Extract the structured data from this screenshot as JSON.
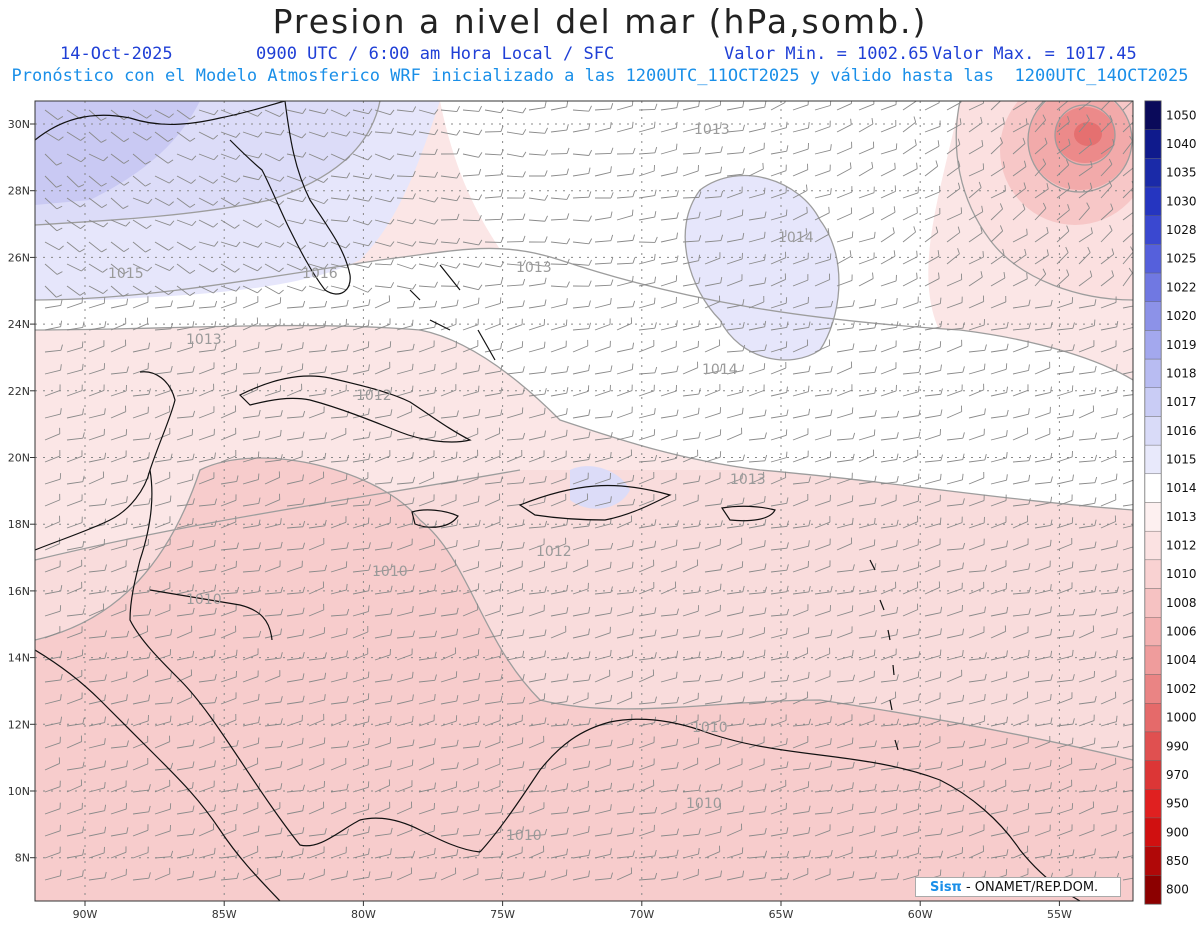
{
  "header": {
    "title": "Presion a nivel del mar (hPa,somb.)",
    "date": "14-Oct-2025",
    "time": "0900 UTC / 6:00 am Hora Local / SFC",
    "min_label": "Valor Min. = 1002.65",
    "max_label": "Valor Max. = 1017.45",
    "subtitle": "Pronóstico con el Modelo Atmosferico WRF inicializado a las 1200UTC_11OCT2025 y válido hasta las  1200UTC_14OCT2025"
  },
  "map": {
    "lat_ticks": [
      "30N",
      "28N",
      "26N",
      "24N",
      "22N",
      "20N",
      "18N",
      "16N",
      "14N",
      "12N",
      "10N",
      "8N"
    ],
    "lon_ticks": [
      "90W",
      "85W",
      "80W",
      "75W",
      "70W",
      "65W",
      "60W",
      "55W"
    ],
    "isobar_labels": [
      "1013",
      "1014",
      "1015",
      "1016",
      "1013",
      "1013",
      "1014",
      "1012",
      "1013",
      "1012",
      "1010",
      "1010",
      "1010",
      "1010",
      "1010"
    ]
  },
  "colorbar": {
    "levels": [
      "1050",
      "1040",
      "1035",
      "1030",
      "1028",
      "1025",
      "1022",
      "1020",
      "1019",
      "1018",
      "1017",
      "1016",
      "1015",
      "1014",
      "1013",
      "1012",
      "1010",
      "1008",
      "1006",
      "1004",
      "1002",
      "1000",
      "990",
      "970",
      "950",
      "900",
      "850",
      "800"
    ],
    "colors": [
      "#0a0a5a",
      "#0f1a8c",
      "#1a2aa8",
      "#2535c0",
      "#3a48d0",
      "#5560dc",
      "#7078e2",
      "#8c92e8",
      "#a3a8ee",
      "#b8bcf2",
      "#c9ccf5",
      "#d9dbf8",
      "#e8e9fb",
      "#ffffff",
      "#fdf0f0",
      "#fbe2e2",
      "#f9d2d2",
      "#f6c2c2",
      "#f3b0b0",
      "#ef9c9c",
      "#ea8484",
      "#e56a6a",
      "#e05050",
      "#dc3636",
      "#e02020",
      "#d01010",
      "#b00808",
      "#8c0000"
    ]
  },
  "credit": {
    "brand": "Sisπ",
    "text": " - ONAMET/REP.DOM."
  }
}
